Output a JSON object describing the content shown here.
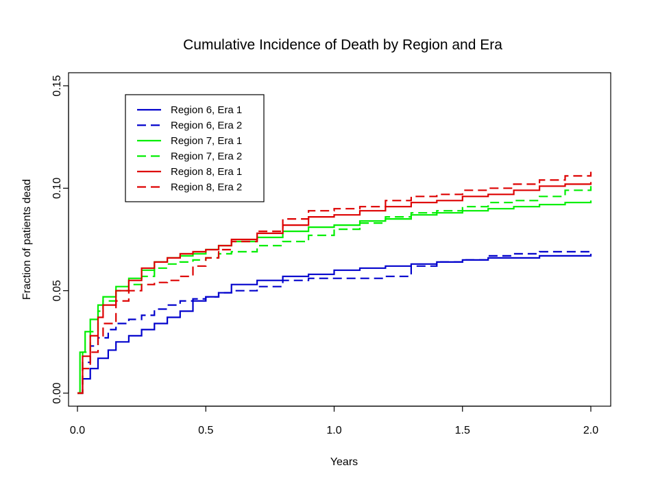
{
  "chart_data": {
    "type": "line",
    "title": "Cumulative Incidence of Death by Region and Era",
    "xlabel": "Years",
    "ylabel": "Fraction of patients dead",
    "xlim": [
      0,
      2.0
    ],
    "ylim": [
      0,
      0.15
    ],
    "x_ticks": [
      "0.0",
      "0.5",
      "1.0",
      "1.5",
      "2.0"
    ],
    "y_ticks": [
      "0.00",
      "0.05",
      "0.10",
      "0.15"
    ],
    "grid": false,
    "legend_position": "top-left",
    "series": [
      {
        "name": "Region 6, Era 1",
        "color": "#0000cc",
        "dash": "solid",
        "x": [
          0,
          0.02,
          0.05,
          0.08,
          0.12,
          0.15,
          0.2,
          0.25,
          0.3,
          0.35,
          0.4,
          0.45,
          0.5,
          0.55,
          0.6,
          0.7,
          0.8,
          0.9,
          1.0,
          1.1,
          1.2,
          1.3,
          1.4,
          1.5,
          1.6,
          1.7,
          1.8,
          1.9,
          2.0
        ],
        "y": [
          0,
          0.007,
          0.012,
          0.017,
          0.021,
          0.025,
          0.028,
          0.031,
          0.034,
          0.037,
          0.04,
          0.045,
          0.047,
          0.049,
          0.053,
          0.055,
          0.057,
          0.058,
          0.06,
          0.061,
          0.062,
          0.063,
          0.064,
          0.065,
          0.066,
          0.066,
          0.067,
          0.067,
          0.068
        ]
      },
      {
        "name": "Region 6, Era 2",
        "color": "#0000cc",
        "dash": "dashed",
        "x": [
          0,
          0.02,
          0.05,
          0.08,
          0.12,
          0.15,
          0.2,
          0.25,
          0.3,
          0.35,
          0.4,
          0.45,
          0.5,
          0.55,
          0.6,
          0.7,
          0.8,
          0.9,
          1.0,
          1.1,
          1.2,
          1.3,
          1.4,
          1.5,
          1.6,
          1.7,
          1.8,
          1.9,
          2.0
        ],
        "y": [
          0,
          0.015,
          0.023,
          0.027,
          0.031,
          0.034,
          0.036,
          0.038,
          0.041,
          0.043,
          0.045,
          0.046,
          0.047,
          0.049,
          0.05,
          0.052,
          0.055,
          0.056,
          0.056,
          0.056,
          0.057,
          0.062,
          0.064,
          0.065,
          0.067,
          0.068,
          0.069,
          0.069,
          0.069
        ]
      },
      {
        "name": "Region 7, Era 1",
        "color": "#00ee00",
        "dash": "solid",
        "x": [
          0,
          0.01,
          0.03,
          0.05,
          0.08,
          0.1,
          0.15,
          0.2,
          0.25,
          0.3,
          0.35,
          0.4,
          0.45,
          0.5,
          0.55,
          0.6,
          0.7,
          0.8,
          0.9,
          1.0,
          1.1,
          1.2,
          1.3,
          1.4,
          1.5,
          1.6,
          1.7,
          1.8,
          1.9,
          2.0
        ],
        "y": [
          0,
          0.02,
          0.03,
          0.036,
          0.043,
          0.047,
          0.052,
          0.056,
          0.06,
          0.064,
          0.066,
          0.067,
          0.068,
          0.07,
          0.072,
          0.074,
          0.076,
          0.079,
          0.081,
          0.082,
          0.084,
          0.085,
          0.087,
          0.088,
          0.089,
          0.09,
          0.091,
          0.092,
          0.093,
          0.094
        ]
      },
      {
        "name": "Region 7, Era 2",
        "color": "#00ee00",
        "dash": "dashed",
        "x": [
          0,
          0.02,
          0.05,
          0.08,
          0.1,
          0.15,
          0.2,
          0.25,
          0.3,
          0.35,
          0.4,
          0.45,
          0.5,
          0.55,
          0.6,
          0.7,
          0.8,
          0.9,
          1.0,
          1.1,
          1.2,
          1.3,
          1.4,
          1.5,
          1.6,
          1.7,
          1.8,
          1.9,
          2.0
        ],
        "y": [
          0,
          0.02,
          0.03,
          0.04,
          0.045,
          0.05,
          0.053,
          0.057,
          0.061,
          0.063,
          0.064,
          0.065,
          0.066,
          0.068,
          0.069,
          0.072,
          0.074,
          0.077,
          0.08,
          0.083,
          0.086,
          0.088,
          0.089,
          0.091,
          0.093,
          0.094,
          0.096,
          0.099,
          0.101
        ]
      },
      {
        "name": "Region 8, Era 1",
        "color": "#dd0000",
        "dash": "solid",
        "x": [
          0,
          0.02,
          0.05,
          0.08,
          0.1,
          0.15,
          0.2,
          0.25,
          0.3,
          0.35,
          0.4,
          0.45,
          0.5,
          0.55,
          0.6,
          0.7,
          0.8,
          0.9,
          1.0,
          1.1,
          1.2,
          1.3,
          1.4,
          1.5,
          1.6,
          1.7,
          1.8,
          1.9,
          2.0
        ],
        "y": [
          0,
          0.018,
          0.028,
          0.037,
          0.043,
          0.05,
          0.055,
          0.061,
          0.064,
          0.066,
          0.068,
          0.069,
          0.07,
          0.072,
          0.075,
          0.078,
          0.082,
          0.086,
          0.087,
          0.089,
          0.091,
          0.093,
          0.094,
          0.096,
          0.097,
          0.099,
          0.101,
          0.102,
          0.103
        ]
      },
      {
        "name": "Region 8, Era 2",
        "color": "#dd0000",
        "dash": "dashed",
        "x": [
          0,
          0.02,
          0.05,
          0.08,
          0.1,
          0.15,
          0.2,
          0.25,
          0.3,
          0.35,
          0.4,
          0.45,
          0.5,
          0.55,
          0.6,
          0.7,
          0.8,
          0.9,
          1.0,
          1.1,
          1.2,
          1.3,
          1.4,
          1.5,
          1.6,
          1.7,
          1.8,
          1.9,
          2.0
        ],
        "y": [
          0,
          0.012,
          0.02,
          0.028,
          0.034,
          0.045,
          0.05,
          0.053,
          0.054,
          0.055,
          0.057,
          0.062,
          0.066,
          0.07,
          0.074,
          0.079,
          0.085,
          0.089,
          0.09,
          0.091,
          0.094,
          0.096,
          0.097,
          0.099,
          0.1,
          0.102,
          0.104,
          0.106,
          0.108
        ]
      }
    ]
  }
}
